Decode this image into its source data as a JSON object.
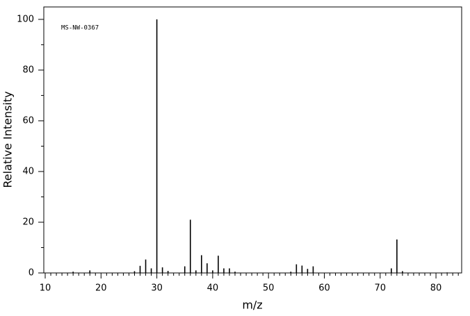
{
  "chart_data": {
    "type": "stick",
    "annotation": "MS-NW-0367",
    "x_label": "m/z",
    "y_label": "Relative Intensity",
    "x": [
      15,
      18,
      26,
      27,
      28,
      29,
      30,
      31,
      32,
      35,
      36,
      37,
      38,
      39,
      40,
      41,
      42,
      43,
      44,
      54,
      55,
      56,
      57,
      58,
      72,
      73,
      74,
      82
    ],
    "values": [
      0.5,
      1,
      0.7,
      2.8,
      5.3,
      1.8,
      100,
      2.2,
      0.8,
      2.6,
      21,
      1,
      7,
      3.8,
      1,
      6.8,
      1.8,
      1.8,
      0.5,
      0.5,
      3.4,
      2.9,
      1.6,
      2.6,
      1.8,
      13.2,
      0.7,
      0.2
    ],
    "color": "#000000",
    "xlim": [
      9.75,
      84.6
    ],
    "ylim": [
      0,
      104.9
    ],
    "xticks": [
      10,
      20,
      30,
      40,
      50,
      60,
      70,
      80
    ],
    "yticks": [
      0,
      20,
      40,
      60,
      80,
      100
    ]
  }
}
